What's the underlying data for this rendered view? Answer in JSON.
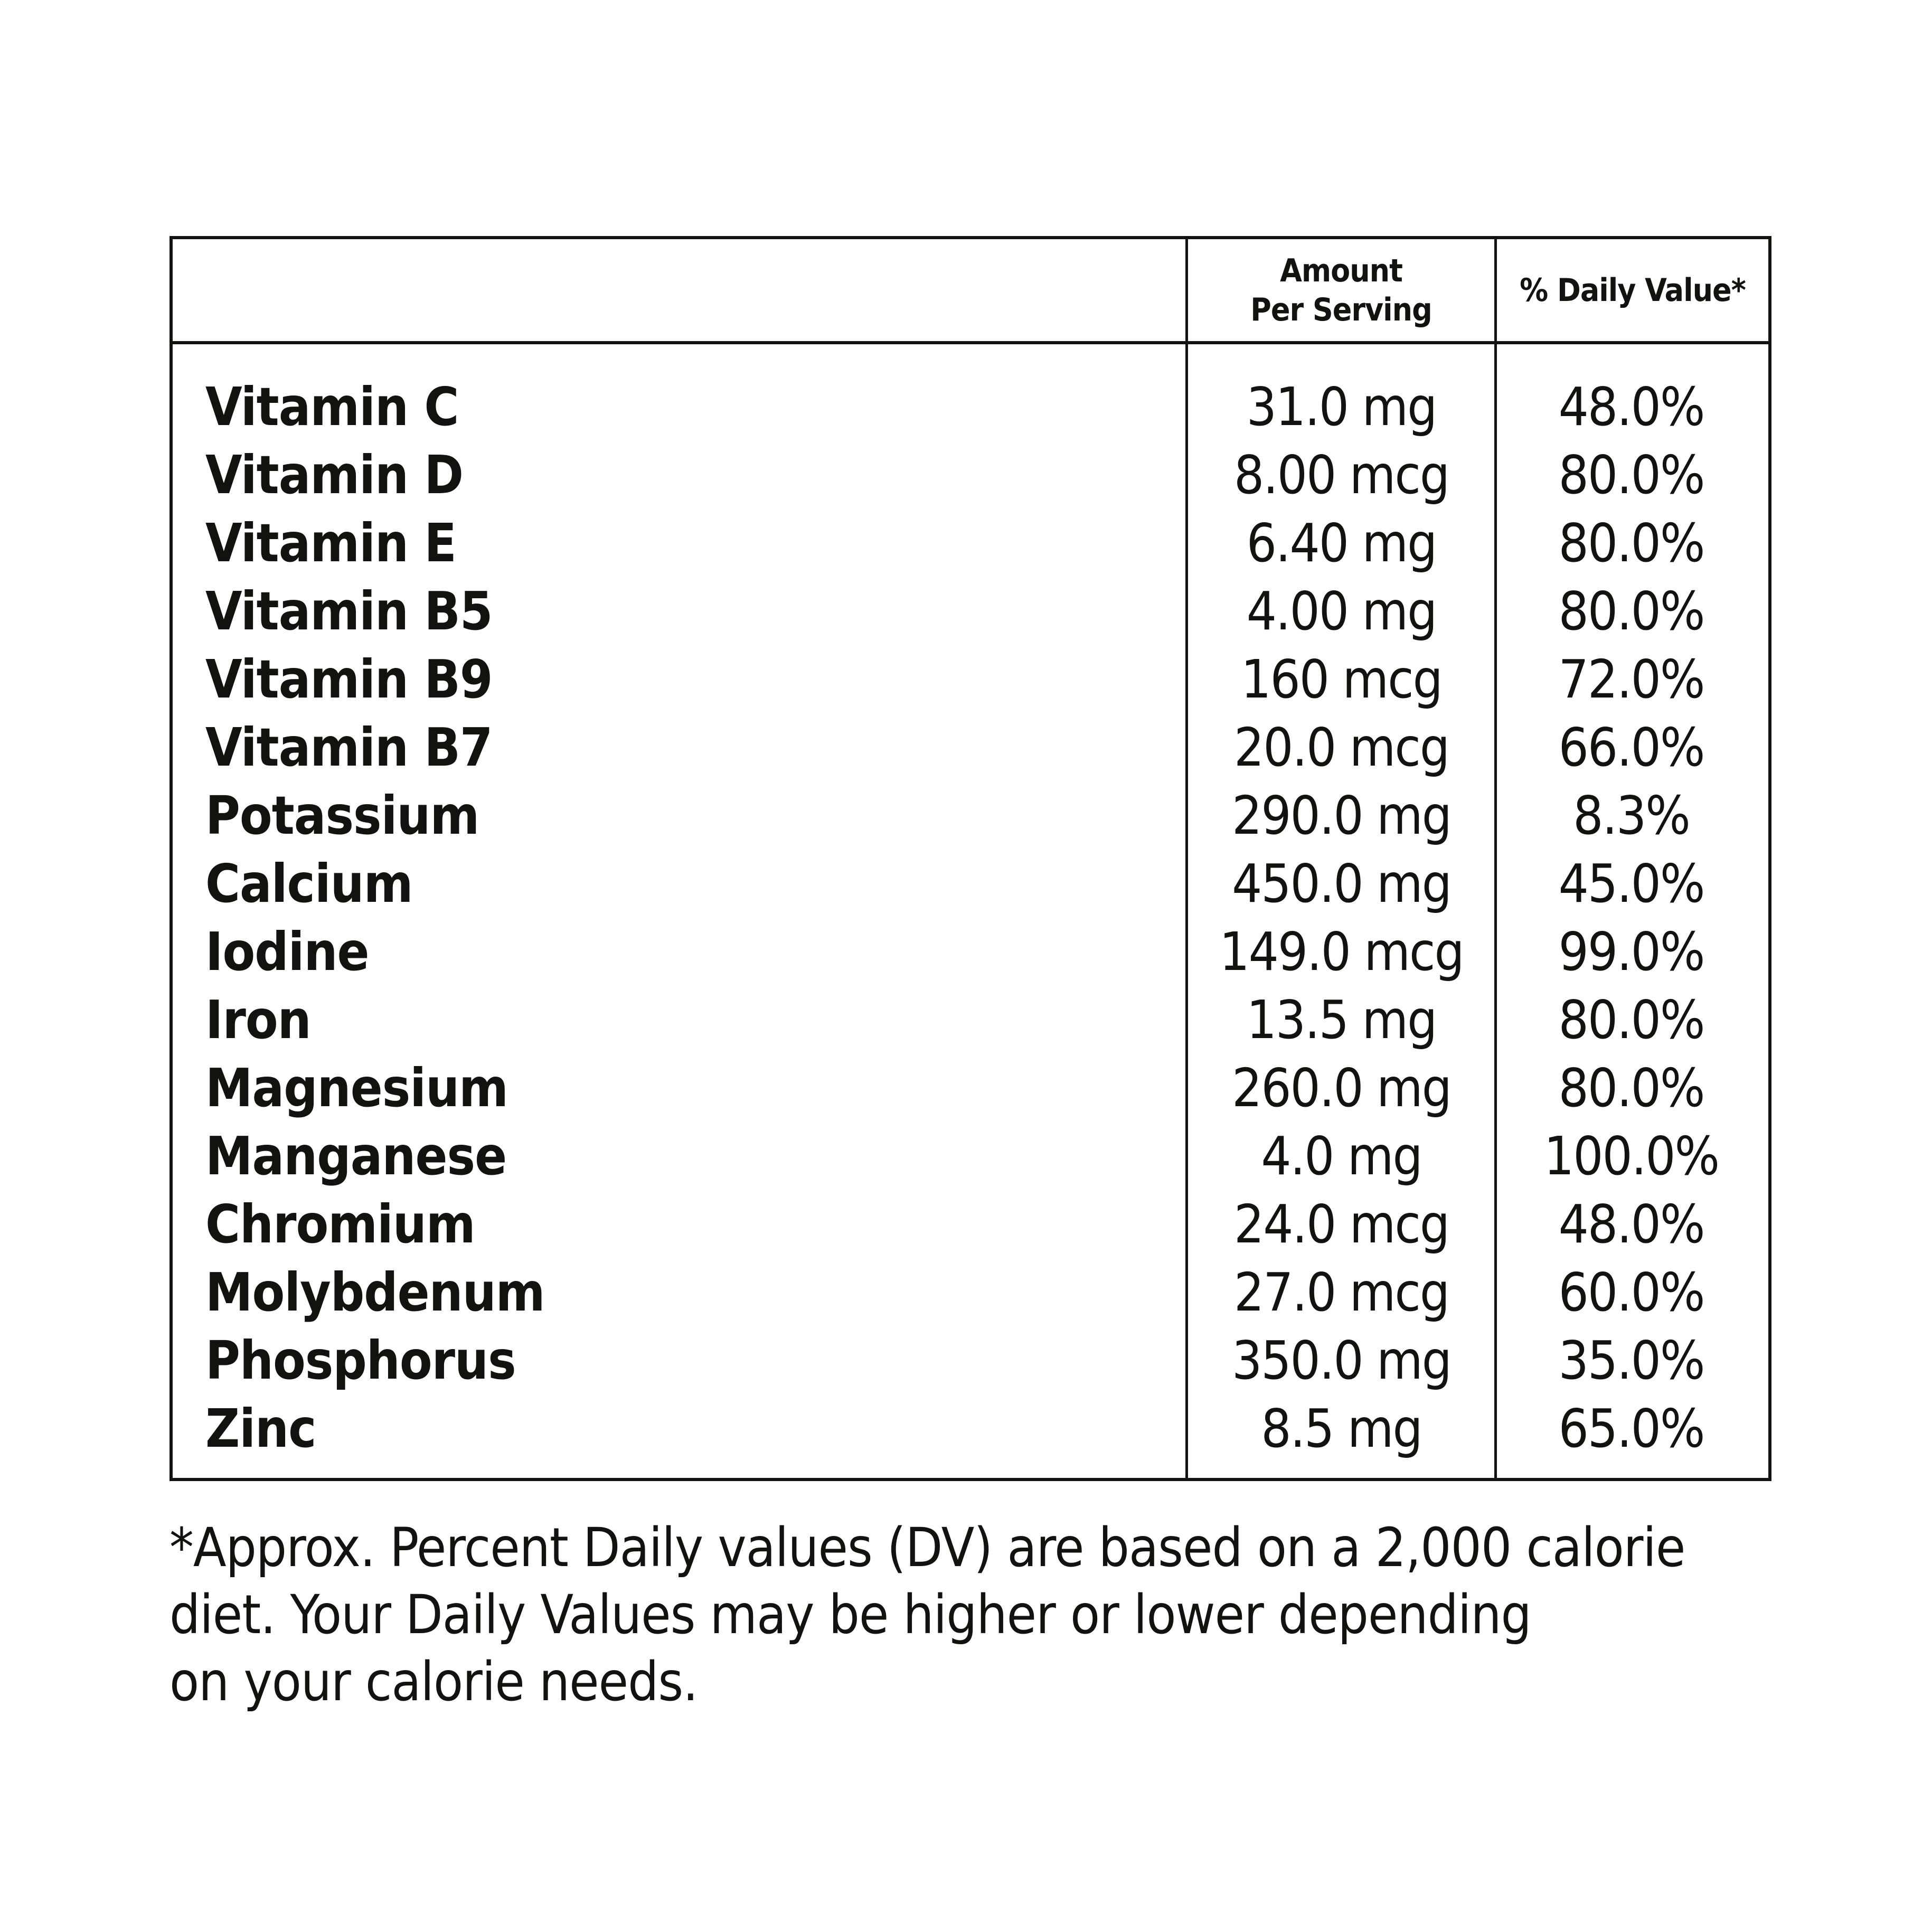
{
  "page": {
    "background_color": "#ffffff",
    "text_color": "#14120e",
    "border_color": "#14120e"
  },
  "table": {
    "type": "table",
    "header": {
      "nutrient_column_label": "",
      "amount_line1": "Amount",
      "amount_line2": "Per Serving",
      "daily_value_label": "% Daily Value*"
    },
    "rows": [
      {
        "name": "Vitamin C",
        "amount": "31.0 mg",
        "dv": "48.0%"
      },
      {
        "name": "Vitamin D",
        "amount": "8.00 mcg",
        "dv": "80.0%"
      },
      {
        "name": "Vitamin E",
        "amount": "6.40 mg",
        "dv": "80.0%"
      },
      {
        "name": "Vitamin B5",
        "amount": "4.00 mg",
        "dv": "80.0%"
      },
      {
        "name": "Vitamin B9",
        "amount": "160 mcg",
        "dv": "72.0%"
      },
      {
        "name": "Vitamin B7",
        "amount": "20.0 mcg",
        "dv": "66.0%"
      },
      {
        "name": "Potassium",
        "amount": "290.0 mg",
        "dv": "8.3%"
      },
      {
        "name": "Calcium",
        "amount": "450.0 mg",
        "dv": "45.0%"
      },
      {
        "name": "Iodine",
        "amount": "149.0 mcg",
        "dv": "99.0%"
      },
      {
        "name": "Iron",
        "amount": "13.5 mg",
        "dv": "80.0%"
      },
      {
        "name": "Magnesium",
        "amount": "260.0 mg",
        "dv": "80.0%"
      },
      {
        "name": "Manganese",
        "amount": "4.0 mg",
        "dv": "100.0%"
      },
      {
        "name": "Chromium",
        "amount": "24.0 mcg",
        "dv": "48.0%"
      },
      {
        "name": "Molybdenum",
        "amount": "27.0 mcg",
        "dv": "60.0%"
      },
      {
        "name": "Phosphorus",
        "amount": "350.0 mg",
        "dv": "35.0%"
      },
      {
        "name": "Zinc",
        "amount": "8.5 mg",
        "dv": "65.0%"
      }
    ]
  },
  "footnote": {
    "line1": "*Approx. Percent Daily values (DV) are based on a 2,000 calorie",
    "line2": "diet. Your Daily Values may be higher or lower depending",
    "line3": "on your calorie needs."
  }
}
